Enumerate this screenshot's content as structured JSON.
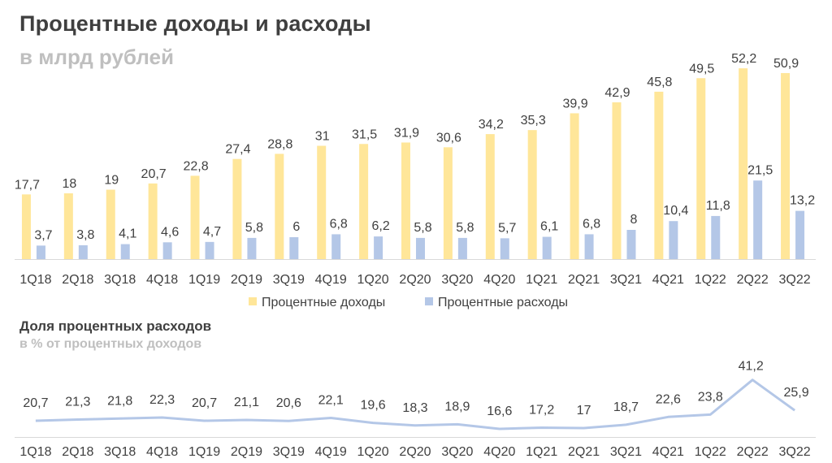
{
  "header": {
    "title": "Процентные доходы и расходы",
    "subtitle": "в млрд рублей"
  },
  "header2": {
    "title": "Доля процентных расходов",
    "subtitle": "в % от процентных доходов"
  },
  "colors": {
    "income": "#ffe699",
    "expense": "#b4c7e7",
    "line": "#b4c7e7",
    "axis": "#d9d9d9",
    "text": "#404040"
  },
  "chart_data": [
    {
      "type": "bar",
      "categories": [
        "1Q18",
        "2Q18",
        "3Q18",
        "4Q18",
        "1Q19",
        "2Q19",
        "3Q19",
        "4Q19",
        "1Q20",
        "2Q20",
        "3Q20",
        "4Q20",
        "1Q21",
        "2Q21",
        "3Q21",
        "4Q21",
        "1Q22",
        "2Q22",
        "3Q22"
      ],
      "series": [
        {
          "name": "Процентные доходы",
          "values": [
            17.7,
            18,
            19,
            20.7,
            22.8,
            27.4,
            28.8,
            31,
            31.5,
            31.9,
            30.6,
            34.2,
            35.3,
            39.9,
            42.9,
            45.8,
            49.5,
            52.2,
            50.9
          ],
          "labels": [
            "17,7",
            "18",
            "19",
            "20,7",
            "22,8",
            "27,4",
            "28,8",
            "31",
            "31,5",
            "31,9",
            "30,6",
            "34,2",
            "35,3",
            "39,9",
            "42,9",
            "45,8",
            "49,5",
            "52,2",
            "50,9"
          ]
        },
        {
          "name": "Процентные расходы",
          "values": [
            3.7,
            3.8,
            4.1,
            4.6,
            4.7,
            5.8,
            6,
            6.8,
            6.2,
            5.8,
            5.8,
            5.7,
            6.1,
            6.8,
            8,
            10.4,
            11.8,
            21.5,
            13.2
          ],
          "labels": [
            "3,7",
            "3,8",
            "4,1",
            "4,6",
            "4,7",
            "5,8",
            "6",
            "6,8",
            "6,2",
            "5,8",
            "5,8",
            "5,7",
            "6,1",
            "6,8",
            "8",
            "10,4",
            "11,8",
            "21,5",
            "13,2"
          ]
        }
      ],
      "legend": "bottom",
      "grid": false
    },
    {
      "type": "line",
      "categories": [
        "1Q18",
        "2Q18",
        "3Q18",
        "4Q18",
        "1Q19",
        "2Q19",
        "3Q19",
        "4Q19",
        "1Q20",
        "2Q20",
        "3Q20",
        "4Q20",
        "1Q21",
        "2Q21",
        "3Q21",
        "4Q21",
        "1Q22",
        "2Q22",
        "3Q22"
      ],
      "series": [
        {
          "values": [
            20.7,
            21.3,
            21.8,
            22.3,
            20.7,
            21.1,
            20.6,
            22.1,
            19.6,
            18.3,
            18.9,
            16.6,
            17.2,
            17,
            18.7,
            22.6,
            23.8,
            41.2,
            25.9
          ],
          "labels": [
            "20,7",
            "21,3",
            "21,8",
            "22,3",
            "20,7",
            "21,1",
            "20,6",
            "22,1",
            "19,6",
            "18,3",
            "18,9",
            "16,6",
            "17,2",
            "17",
            "18,7",
            "22,6",
            "23,8",
            "41,2",
            "25,9"
          ]
        }
      ],
      "grid": false
    }
  ]
}
